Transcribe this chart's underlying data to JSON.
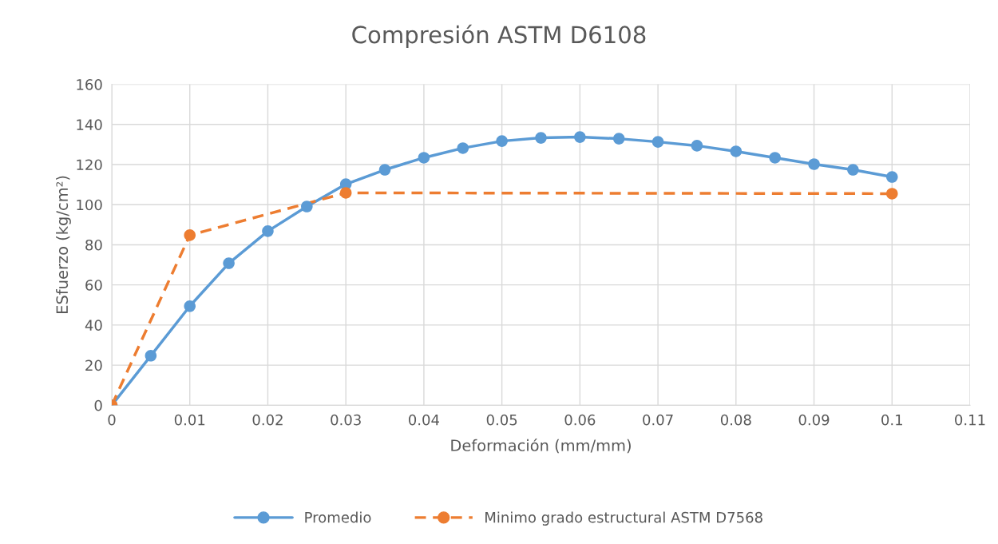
{
  "chart_data": {
    "type": "line",
    "title": "Compresión ASTM D6108",
    "xlabel": "Deformación (mm/mm)",
    "ylabel": "ESfuerzo (kg/cm²)",
    "xlim": [
      0,
      0.11
    ],
    "xticks": [
      0,
      0.01,
      0.02,
      0.03,
      0.04,
      0.05,
      0.06,
      0.07,
      0.08,
      0.09,
      0.1,
      0.11
    ],
    "ylim": [
      0,
      160
    ],
    "yticks": [
      0,
      20,
      40,
      60,
      80,
      100,
      120,
      140,
      160
    ],
    "grid": true,
    "legend": "bottom",
    "marker": "circle",
    "series": [
      {
        "name": "Promedio",
        "color": "#5b9bd5",
        "line_style": "solid",
        "x": [
          0,
          0.005,
          0.01,
          0.015,
          0.02,
          0.025,
          0.03,
          0.035,
          0.04,
          0.045,
          0.05,
          0.055,
          0.06,
          0.065,
          0.07,
          0.075,
          0.08,
          0.085,
          0.09,
          0.095,
          0.1
        ],
        "values": [
          0,
          24.7,
          49.4,
          70.8,
          86.8,
          99.1,
          110.2,
          117.4,
          123.4,
          128.2,
          131.7,
          133.3,
          133.7,
          132.9,
          131.3,
          129.4,
          126.6,
          123.4,
          120.2,
          117.4,
          113.8
        ]
      },
      {
        "name": "Minimo grado estructural ASTM D7568",
        "color": "#ed7d31",
        "line_style": "dashed",
        "x": [
          0,
          0.01,
          0.03,
          0.1
        ],
        "values": [
          0,
          84.8,
          105.9,
          105.5
        ]
      }
    ]
  }
}
